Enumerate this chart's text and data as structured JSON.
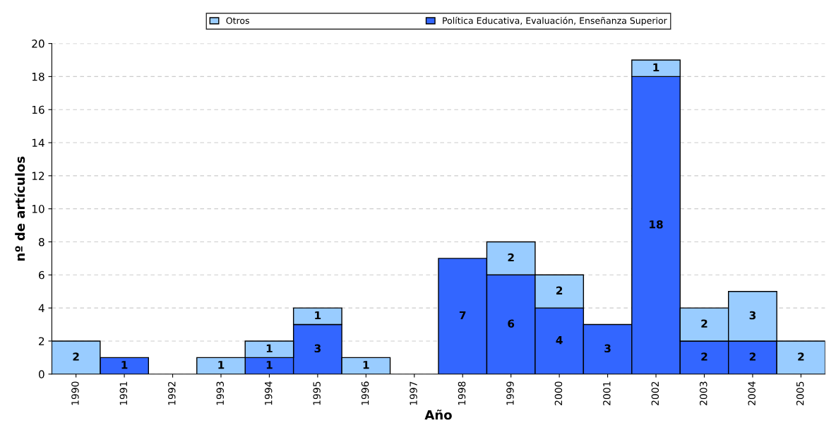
{
  "chart_data": {
    "type": "bar",
    "stacked": true,
    "xlabel": "Año",
    "ylabel": "nº de artículos",
    "categories": [
      "1990",
      "1991",
      "1992",
      "1993",
      "1994",
      "1995",
      "1996",
      "1997",
      "1998",
      "1999",
      "2000",
      "2001",
      "2002",
      "2003",
      "2004",
      "2005"
    ],
    "series": [
      {
        "name": "Política Educativa, Evaluación, Enseñanza Superior",
        "color": "#3366ff",
        "values": [
          0,
          1,
          0,
          0,
          1,
          3,
          0,
          0,
          7,
          6,
          4,
          3,
          18,
          2,
          2,
          0
        ],
        "value_labels": [
          null,
          "1",
          null,
          null,
          "1",
          "3",
          null,
          null,
          "7",
          "6",
          "4",
          "3",
          "18",
          "2",
          "2",
          null
        ]
      },
      {
        "name": "Otros",
        "color": "#99ccff",
        "values": [
          2,
          0,
          0,
          1,
          1,
          1,
          1,
          0,
          0,
          2,
          2,
          0,
          1,
          2,
          3,
          2
        ],
        "value_labels": [
          "2",
          null,
          null,
          "1",
          "1",
          "1",
          "1",
          null,
          null,
          "2",
          "2",
          null,
          "1",
          "2",
          "3",
          "2"
        ]
      }
    ],
    "ylim": [
      0,
      20
    ],
    "yticks": [
      0,
      2,
      4,
      6,
      8,
      10,
      12,
      14,
      16,
      18,
      20
    ],
    "grid": "y",
    "legend": "top"
  }
}
